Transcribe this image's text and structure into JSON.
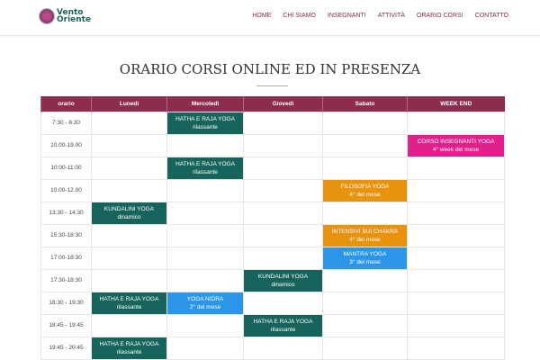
{
  "header": {
    "logo_text": "Vento Oriente",
    "logo_line1": "Vento",
    "logo_line2": "Oriente",
    "nav": [
      "HOME",
      "CHI SIAMO",
      "INSEGNANTI",
      "ATTIVITÀ",
      "ORARIO CORSI",
      "CONTATTO"
    ]
  },
  "page_title": "ORARIO CORSI ONLINE ED IN PRESENZA",
  "colors": {
    "header": "#8e2c50",
    "teal": "#17645c",
    "orange": "#e8930e",
    "blue": "#2b96e8",
    "pink": "#e0208d"
  },
  "table": {
    "columns": [
      "orario",
      "Lunedì",
      "Mercoledì",
      "Giovedì",
      "Sabato",
      "WEEK END"
    ],
    "rows": [
      {
        "time": "7:30 - 8:30",
        "cells": [
          null,
          {
            "title": "HATHA E RAJA YOGA",
            "sub": "rilassante",
            "color": "teal"
          },
          null,
          null,
          null
        ]
      },
      {
        "time": "10.00-19.00",
        "cells": [
          null,
          null,
          null,
          null,
          {
            "title": "CORSO INSEGNANTI YOGA",
            "sub": "4° week del mese",
            "color": "pink"
          }
        ]
      },
      {
        "time": "10:00-11:00",
        "cells": [
          null,
          {
            "title": "HATHA E RAJA YOGA",
            "sub": "rilassante",
            "color": "teal"
          },
          null,
          null,
          null
        ]
      },
      {
        "time": "10.00-12.00",
        "cells": [
          null,
          null,
          null,
          {
            "title": "FILOSOFIA YOGA",
            "sub": "4° del mese",
            "color": "orange"
          },
          null
        ]
      },
      {
        "time": "13:30 - 14:30",
        "cells": [
          {
            "title": "KUNDALINI YOGA",
            "sub": "dinamico",
            "color": "teal"
          },
          null,
          null,
          null,
          null
        ]
      },
      {
        "time": "15:30-18:30",
        "cells": [
          null,
          null,
          null,
          {
            "title": "INTENSIVI SUI CHAKRA",
            "sub": "4° del mese",
            "color": "orange"
          },
          null
        ]
      },
      {
        "time": "17:00-18:30",
        "cells": [
          null,
          null,
          null,
          {
            "title": "MANTRA YOGA",
            "sub": "3° del mese",
            "color": "blue"
          },
          null
        ]
      },
      {
        "time": "17:30-18:30",
        "cells": [
          null,
          null,
          {
            "title": "KUNDALINI YOGA",
            "sub": "dinamico",
            "color": "teal"
          },
          null,
          null
        ]
      },
      {
        "time": "18:30 - 19:30",
        "cells": [
          {
            "title": "HATHA E RAJA YOGA",
            "sub": "rilassante",
            "color": "teal"
          },
          {
            "title": "YOGA NIDRA",
            "sub": "2° del mese",
            "color": "blue"
          },
          null,
          null,
          null
        ]
      },
      {
        "time": "18:45 - 19:45",
        "cells": [
          null,
          null,
          {
            "title": "HATHA E RAJA YOGA",
            "sub": "rilassante",
            "color": "teal"
          },
          null,
          null
        ]
      },
      {
        "time": "19:45 - 20:45",
        "cells": [
          {
            "title": "HATHA E RAJA YOGA",
            "sub": "rilassante",
            "color": "teal"
          },
          null,
          null,
          null,
          null
        ]
      }
    ]
  }
}
